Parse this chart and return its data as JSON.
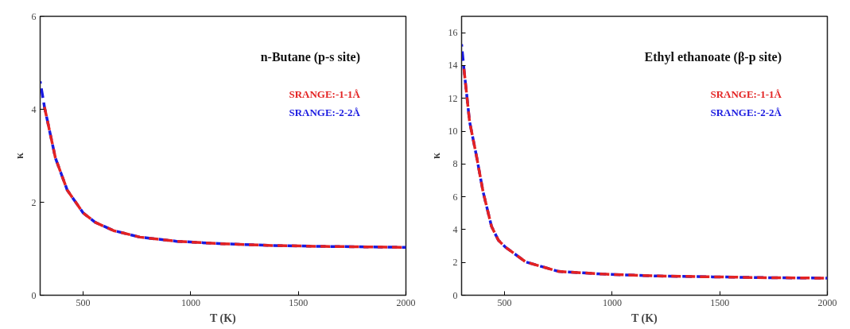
{
  "chart_data": [
    {
      "type": "line",
      "title": "n-Butane (p-s site)",
      "xlabel": "T (K)",
      "ylabel": "κ",
      "xlim": [
        300,
        2000
      ],
      "xticks": [
        500,
        1000,
        1500,
        2000
      ],
      "ylim": [
        0,
        6
      ],
      "yticks": [
        0,
        2,
        4,
        6
      ],
      "grid": false,
      "legend": "top right",
      "line_style": "dashed",
      "marker": "none",
      "series": [
        {
          "name": "SRANGE:-1-1Å",
          "color": "#e32222",
          "x": [
            320,
            371,
            426,
            500,
            555,
            641,
            763,
            935,
            1131,
            1376,
            1621,
            2000
          ],
          "values": [
            4.05,
            2.95,
            2.26,
            1.77,
            1.57,
            1.39,
            1.25,
            1.16,
            1.11,
            1.07,
            1.05,
            1.03
          ]
        },
        {
          "name": "SRANGE:-2-2Å",
          "color": "#1a1ae0",
          "x": [
            300,
            320,
            371,
            426,
            500,
            555,
            641,
            763,
            935,
            1131,
            1376,
            1621,
            2000
          ],
          "values": [
            4.6,
            4.05,
            2.95,
            2.26,
            1.77,
            1.57,
            1.39,
            1.25,
            1.16,
            1.11,
            1.07,
            1.05,
            1.03
          ]
        }
      ]
    },
    {
      "type": "line",
      "title": "Ethyl ethanoate (β-p site)",
      "xlabel": "T (K)",
      "ylabel": "κ",
      "xlim": [
        300,
        2000
      ],
      "xticks": [
        500,
        1000,
        1500,
        2000
      ],
      "ylim": [
        0,
        17
      ],
      "yticks": [
        0,
        2,
        4,
        6,
        8,
        10,
        12,
        14,
        16
      ],
      "grid": false,
      "legend": "top right",
      "line_style": "dashed",
      "marker": "none",
      "series": [
        {
          "name": "SRANGE:-1-1Å",
          "color": "#e32222",
          "x": [
            311,
            337,
            369,
            400,
            439,
            471,
            503,
            598,
            751,
            955,
            1210,
            1466,
            1721,
            2000
          ],
          "values": [
            13.8,
            10.6,
            8.5,
            6.3,
            4.2,
            3.35,
            2.94,
            2.03,
            1.45,
            1.29,
            1.17,
            1.12,
            1.07,
            1.04
          ]
        },
        {
          "name": "SRANGE:-2-2Å",
          "color": "#1a1ae0",
          "x": [
            300,
            311,
            337,
            369,
            400,
            439,
            471,
            503,
            598,
            751,
            955,
            1210,
            1466,
            1721,
            2000
          ],
          "values": [
            15.3,
            13.8,
            10.6,
            8.5,
            6.3,
            4.2,
            3.35,
            2.94,
            2.03,
            1.45,
            1.29,
            1.17,
            1.12,
            1.07,
            1.04
          ]
        }
      ]
    }
  ]
}
